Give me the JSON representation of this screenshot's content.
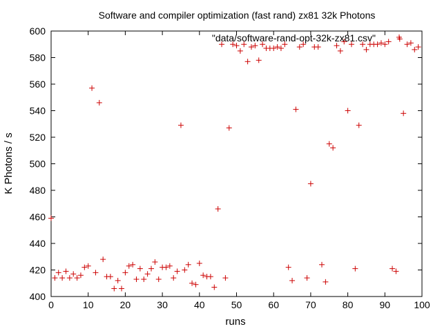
{
  "chart_data": {
    "type": "scatter",
    "title": "Software and compiler optimization (fast rand) zx81 32k Photons",
    "xlabel": "runs",
    "ylabel": "K Photons / s",
    "xlim": [
      0,
      100
    ],
    "ylim": [
      400,
      600
    ],
    "xticks": [
      0,
      10,
      20,
      30,
      40,
      50,
      60,
      70,
      80,
      90,
      100
    ],
    "yticks": [
      400,
      420,
      440,
      460,
      480,
      500,
      520,
      540,
      560,
      580,
      600
    ],
    "grid": false,
    "legend_position": "top-right",
    "marker": "+",
    "series": [
      {
        "name": "\"data/software-rand-opt-32k-zx81.csv\"",
        "color": "#cc0000",
        "x": [
          0,
          1,
          2,
          3,
          4,
          5,
          6,
          7,
          8,
          9,
          10,
          11,
          12,
          13,
          14,
          15,
          16,
          17,
          18,
          19,
          20,
          21,
          22,
          23,
          24,
          25,
          26,
          27,
          28,
          29,
          30,
          31,
          32,
          33,
          34,
          35,
          36,
          37,
          38,
          39,
          40,
          41,
          42,
          43,
          44,
          45,
          46,
          47,
          48,
          49,
          50,
          51,
          52,
          53,
          54,
          55,
          56,
          57,
          58,
          59,
          60,
          61,
          62,
          63,
          64,
          65,
          66,
          67,
          68,
          69,
          70,
          71,
          72,
          73,
          74,
          75,
          76,
          77,
          78,
          79,
          80,
          81,
          82,
          83,
          84,
          85,
          86,
          87,
          88,
          89,
          90,
          91,
          92,
          93,
          94,
          95,
          96,
          97,
          98,
          99
        ],
        "y": [
          459,
          414,
          418,
          414,
          419,
          414,
          417,
          414,
          416,
          422,
          423,
          557,
          418,
          546,
          428,
          415,
          415,
          406,
          412,
          406,
          418,
          423,
          424,
          413,
          421,
          413,
          417,
          421,
          426,
          413,
          422,
          422,
          423,
          414,
          419,
          529,
          420,
          424,
          410,
          409,
          425,
          416,
          415,
          415,
          407,
          466,
          590,
          414,
          527,
          590,
          589,
          585,
          590,
          577,
          588,
          589,
          578,
          590,
          587,
          587,
          587,
          588,
          587,
          590,
          422,
          412,
          541,
          588,
          590,
          414,
          485,
          588,
          588,
          424,
          411,
          515,
          512,
          589,
          585,
          592,
          540,
          590,
          421,
          529,
          590,
          586,
          590,
          590,
          590,
          591,
          590,
          592,
          421,
          419,
          594,
          538,
          590,
          591,
          586,
          588
        ]
      }
    ]
  }
}
